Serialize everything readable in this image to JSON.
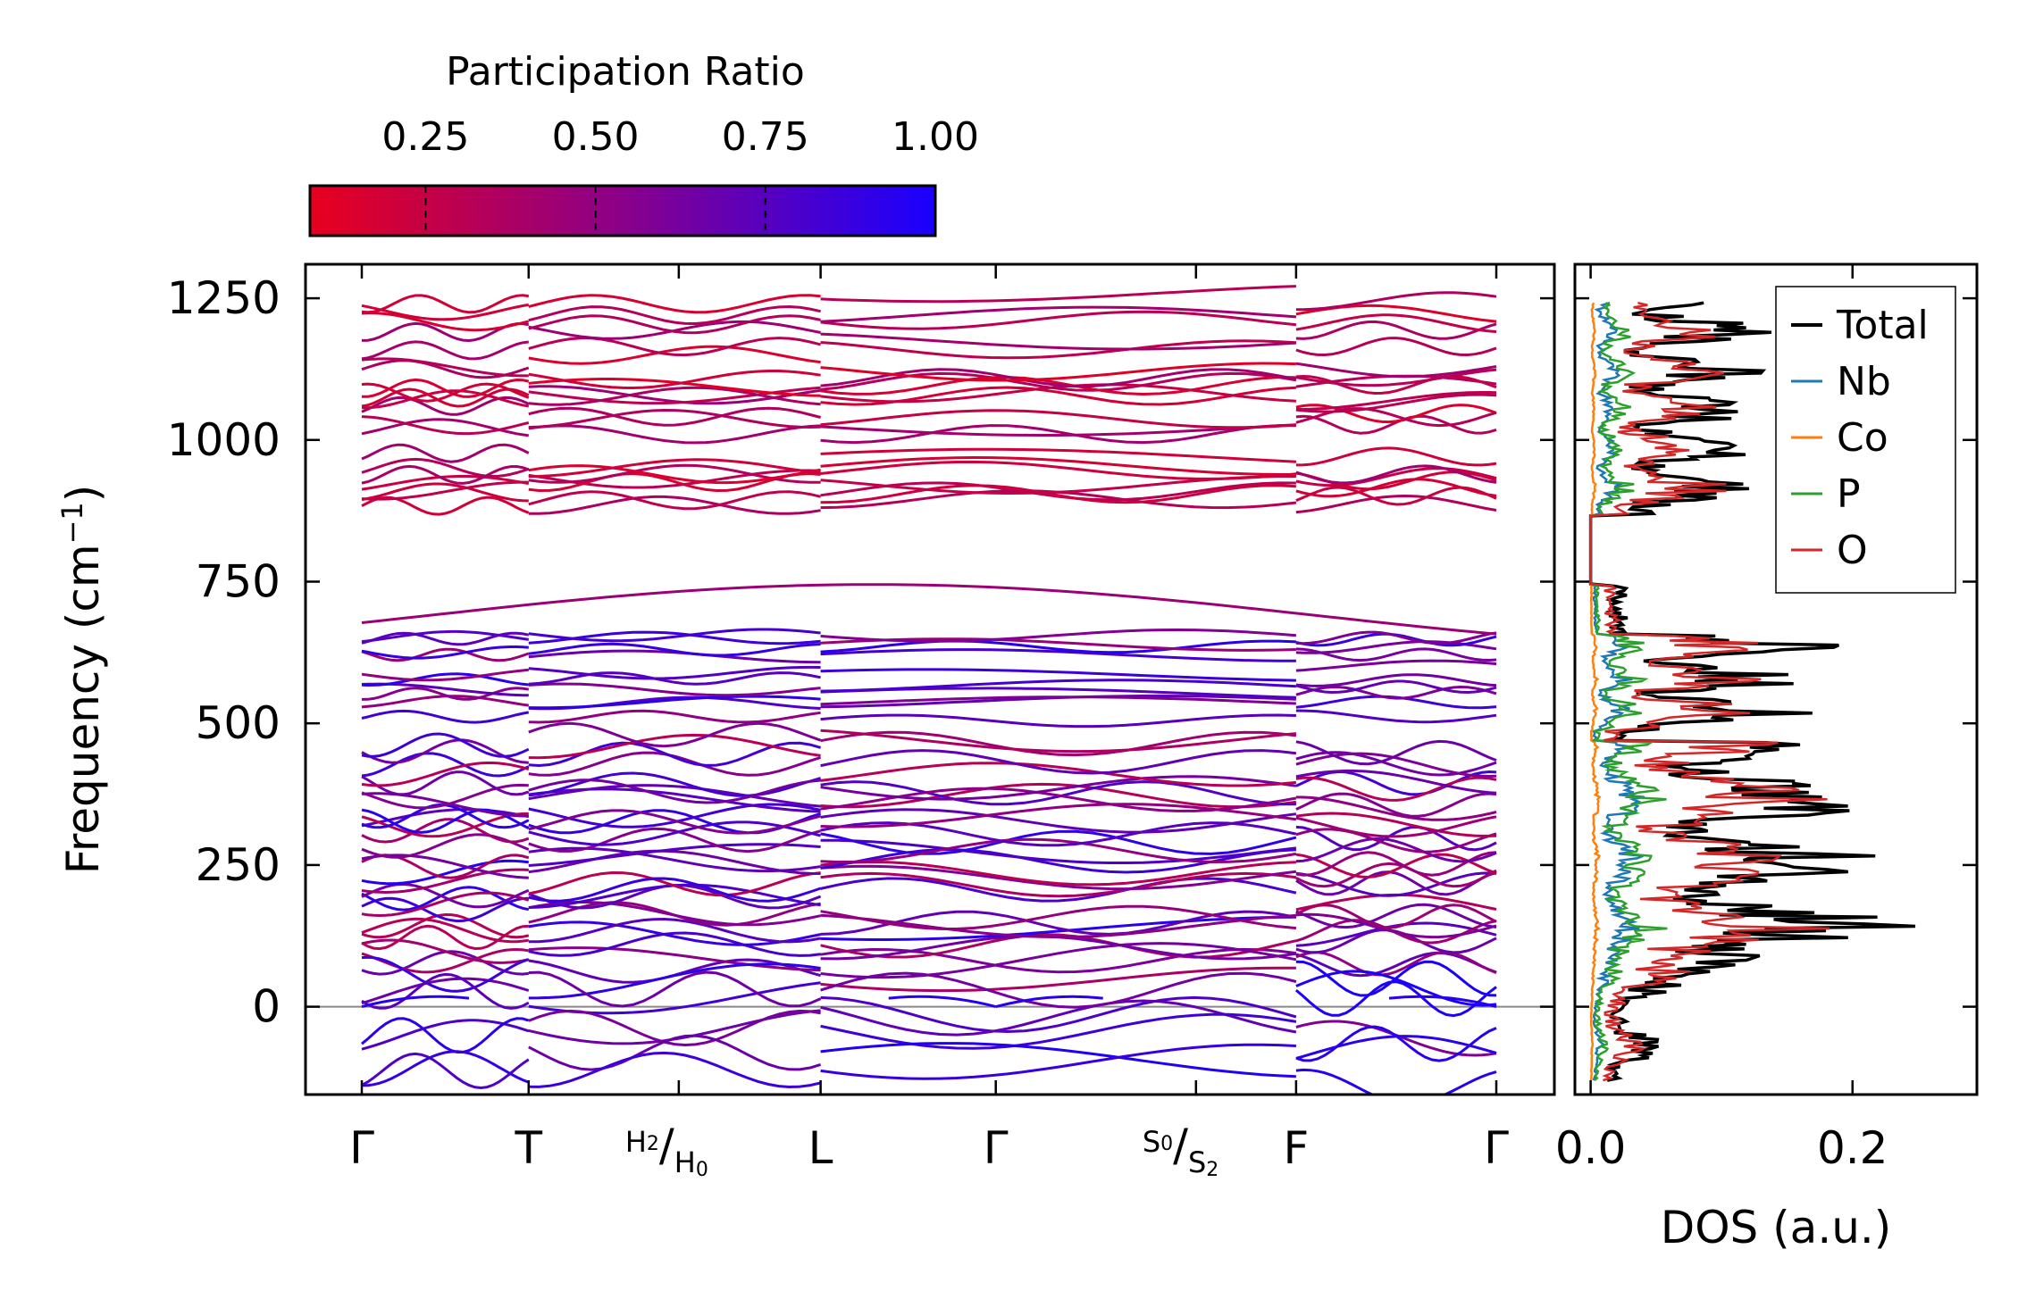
{
  "chart_data": [
    {
      "type": "line",
      "subtype": "phonon-band-structure",
      "ylabel": "Frequency (cm",
      "ylabel_sup": "−1",
      "ylabel_close": ")",
      "ylim": [
        -155,
        1310
      ],
      "yticks": [
        0,
        250,
        500,
        750,
        1000,
        1250
      ],
      "high_symmetry_points": [
        {
          "main": "Γ"
        },
        {
          "main": "T"
        },
        {
          "main": "",
          "pre_sup": "H",
          "pre_sup_sub": "2",
          "slash": "/",
          "sub": "H",
          "sub_sub": "0"
        },
        {
          "main": "L"
        },
        {
          "main": "Γ"
        },
        {
          "main": "",
          "pre_sup": "S",
          "pre_sup_sub": "0",
          "slash": "/",
          "sub": "S",
          "sub_sub": "2"
        },
        {
          "main": "F"
        },
        {
          "main": "Γ"
        }
      ],
      "kpath_positions": [
        0,
        1,
        1.9,
        2.75,
        3.8,
        5.0,
        5.6,
        6.8
      ],
      "zero_line": 0,
      "band_groups_cm1": {
        "high_frequency": [
          890,
          905,
          918,
          925,
          940,
          950,
          965,
          1025,
          1035,
          1045,
          1065,
          1075,
          1090,
          1105,
          1120,
          1135,
          1160,
          1180,
          1200,
          1225,
          1250
        ],
        "mid_frequency": [
          510,
          530,
          545,
          560,
          575,
          595,
          615,
          630,
          645,
          655,
          735
        ],
        "low_frequency": [
          60,
          85,
          100,
          115,
          130,
          145,
          160,
          175,
          190,
          205,
          220,
          235,
          250,
          265,
          280,
          295,
          310,
          325,
          340,
          355,
          370,
          385,
          400,
          415,
          430,
          445,
          465
        ],
        "soft_modes": [
          -5,
          -40,
          -60,
          -90,
          -120,
          35,
          55
        ]
      }
    },
    {
      "type": "colorbar",
      "title": "Participation Ratio",
      "ticks": [
        "0.25",
        "0.50",
        "0.75",
        "1.00"
      ],
      "tick_values": [
        0.25,
        0.5,
        0.75,
        1.0
      ],
      "range": [
        0.08,
        1.0
      ],
      "colors": [
        "#e8001e",
        "#8a008a",
        "#1a00ff"
      ]
    },
    {
      "type": "line",
      "subtype": "density-of-states",
      "xlabel": "DOS (a.u.)",
      "xticks": [
        "0.0",
        "0.2"
      ],
      "xtick_values": [
        0.0,
        0.2
      ],
      "xlim": [
        -0.012,
        0.295
      ],
      "ylim": [
        -155,
        1310
      ],
      "series": [
        {
          "name": "Total",
          "color": "#000000"
        },
        {
          "name": "Nb",
          "color": "#1f77b4"
        },
        {
          "name": "Co",
          "color": "#ff7f0e"
        },
        {
          "name": "P",
          "color": "#2ca02c"
        },
        {
          "name": "O",
          "color": "#d62728"
        }
      ]
    }
  ]
}
